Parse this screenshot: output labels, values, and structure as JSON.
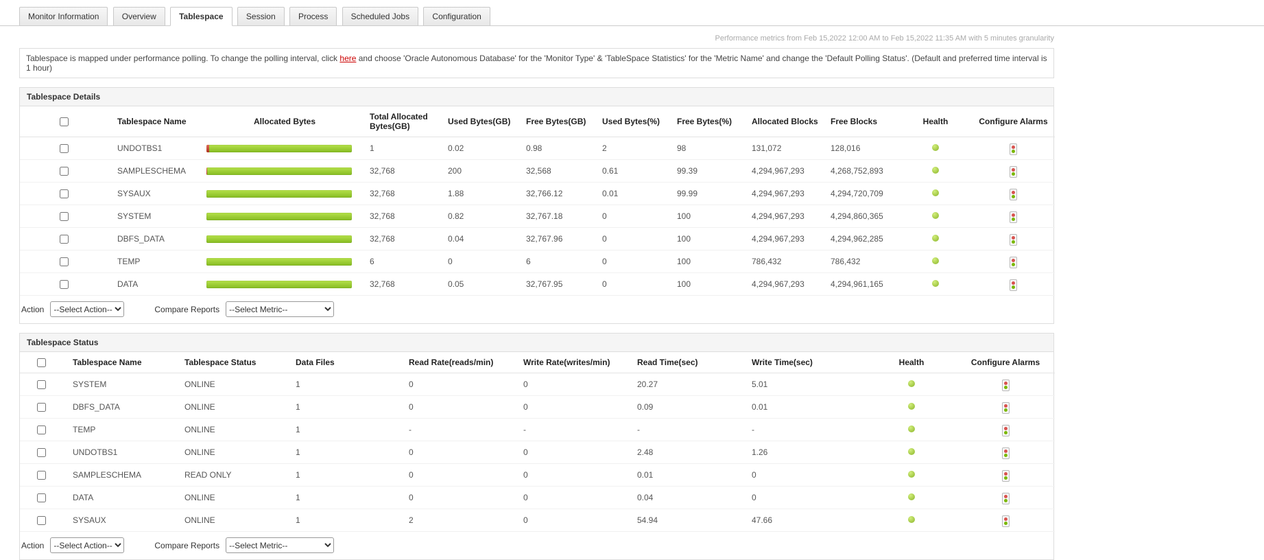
{
  "tabs": [
    {
      "label": "Monitor Information"
    },
    {
      "label": "Overview"
    },
    {
      "label": "Tablespace"
    },
    {
      "label": "Session"
    },
    {
      "label": "Process"
    },
    {
      "label": "Scheduled Jobs"
    },
    {
      "label": "Configuration"
    }
  ],
  "metrics_note": "Performance metrics from Feb 15,2022 12:00 AM to Feb 15,2022 11:35 AM with 5 minutes granularity",
  "banner": {
    "text_before_link": "Tablespace is mapped under performance polling. To change the polling interval, click ",
    "link_text": "here",
    "text_after_link": " and choose 'Oracle Autonomous Database' for the 'Monitor Type' & 'TableSpace Statistics' for the 'Metric Name' and change the 'Default Polling Status'. (Default and preferred time interval is 1 hour)"
  },
  "details": {
    "title": "Tablespace Details",
    "columns": [
      "Tablespace Name",
      "Allocated Bytes",
      "Total Allocated Bytes(GB)",
      "Used Bytes(GB)",
      "Free Bytes(GB)",
      "Used Bytes(%)",
      "Free Bytes(%)",
      "Allocated Blocks",
      "Free Blocks",
      "Health",
      "Configure Alarms"
    ],
    "rows": [
      {
        "name": "UNDOTBS1",
        "bar_used_pct": 2,
        "total_gb": "1",
        "used_gb": "0.02",
        "free_gb": "0.98",
        "used_pct": "2",
        "free_pct": "98",
        "allocated_blocks": "131,072",
        "free_blocks": "128,016"
      },
      {
        "name": "SAMPLESCHEMA",
        "bar_used_pct": 0.61,
        "total_gb": "32,768",
        "used_gb": "200",
        "free_gb": "32,568",
        "used_pct": "0.61",
        "free_pct": "99.39",
        "allocated_blocks": "4,294,967,293",
        "free_blocks": "4,268,752,893"
      },
      {
        "name": "SYSAUX",
        "bar_used_pct": 0.01,
        "total_gb": "32,768",
        "used_gb": "1.88",
        "free_gb": "32,766.12",
        "used_pct": "0.01",
        "free_pct": "99.99",
        "allocated_blocks": "4,294,967,293",
        "free_blocks": "4,294,720,709"
      },
      {
        "name": "SYSTEM",
        "bar_used_pct": 0,
        "total_gb": "32,768",
        "used_gb": "0.82",
        "free_gb": "32,767.18",
        "used_pct": "0",
        "free_pct": "100",
        "allocated_blocks": "4,294,967,293",
        "free_blocks": "4,294,860,365"
      },
      {
        "name": "DBFS_DATA",
        "bar_used_pct": 0,
        "total_gb": "32,768",
        "used_gb": "0.04",
        "free_gb": "32,767.96",
        "used_pct": "0",
        "free_pct": "100",
        "allocated_blocks": "4,294,967,293",
        "free_blocks": "4,294,962,285"
      },
      {
        "name": "TEMP",
        "bar_used_pct": 0,
        "total_gb": "6",
        "used_gb": "0",
        "free_gb": "6",
        "used_pct": "0",
        "free_pct": "100",
        "allocated_blocks": "786,432",
        "free_blocks": "786,432"
      },
      {
        "name": "DATA",
        "bar_used_pct": 0,
        "total_gb": "32,768",
        "used_gb": "0.05",
        "free_gb": "32,767.95",
        "used_pct": "0",
        "free_pct": "100",
        "allocated_blocks": "4,294,967,293",
        "free_blocks": "4,294,961,165"
      }
    ]
  },
  "action_bar": {
    "action_label": "Action",
    "action_select_value": "--Select Action--",
    "compare_label": "Compare Reports",
    "metric_select_value": "--Select Metric--"
  },
  "status": {
    "title": "Tablespace Status",
    "columns": [
      "Tablespace Name",
      "Tablespace Status",
      "Data Files",
      "Read Rate(reads/min)",
      "Write Rate(writes/min)",
      "Read Time(sec)",
      "Write Time(sec)",
      "Health",
      "Configure Alarms"
    ],
    "rows": [
      {
        "name": "SYSTEM",
        "status": "ONLINE",
        "data_files": "1",
        "read_rate": "0",
        "write_rate": "0",
        "read_time": "20.27",
        "write_time": "5.01"
      },
      {
        "name": "DBFS_DATA",
        "status": "ONLINE",
        "data_files": "1",
        "read_rate": "0",
        "write_rate": "0",
        "read_time": "0.09",
        "write_time": "0.01"
      },
      {
        "name": "TEMP",
        "status": "ONLINE",
        "data_files": "1",
        "read_rate": "-",
        "write_rate": "-",
        "read_time": "-",
        "write_time": "-"
      },
      {
        "name": "UNDOTBS1",
        "status": "ONLINE",
        "data_files": "1",
        "read_rate": "0",
        "write_rate": "0",
        "read_time": "2.48",
        "write_time": "1.26"
      },
      {
        "name": "SAMPLESCHEMA",
        "status": "READ ONLY",
        "data_files": "1",
        "read_rate": "0",
        "write_rate": "0",
        "read_time": "0.01",
        "write_time": "0"
      },
      {
        "name": "DATA",
        "status": "ONLINE",
        "data_files": "1",
        "read_rate": "0",
        "write_rate": "0",
        "read_time": "0.04",
        "write_time": "0"
      },
      {
        "name": "SYSAUX",
        "status": "ONLINE",
        "data_files": "1",
        "read_rate": "2",
        "write_rate": "0",
        "read_time": "54.94",
        "write_time": "47.66"
      }
    ]
  },
  "colors": {
    "bar_green": "#86bb22",
    "bar_red": "#b03020",
    "health_green": "#8ab529",
    "link_red": "#cc0000"
  }
}
